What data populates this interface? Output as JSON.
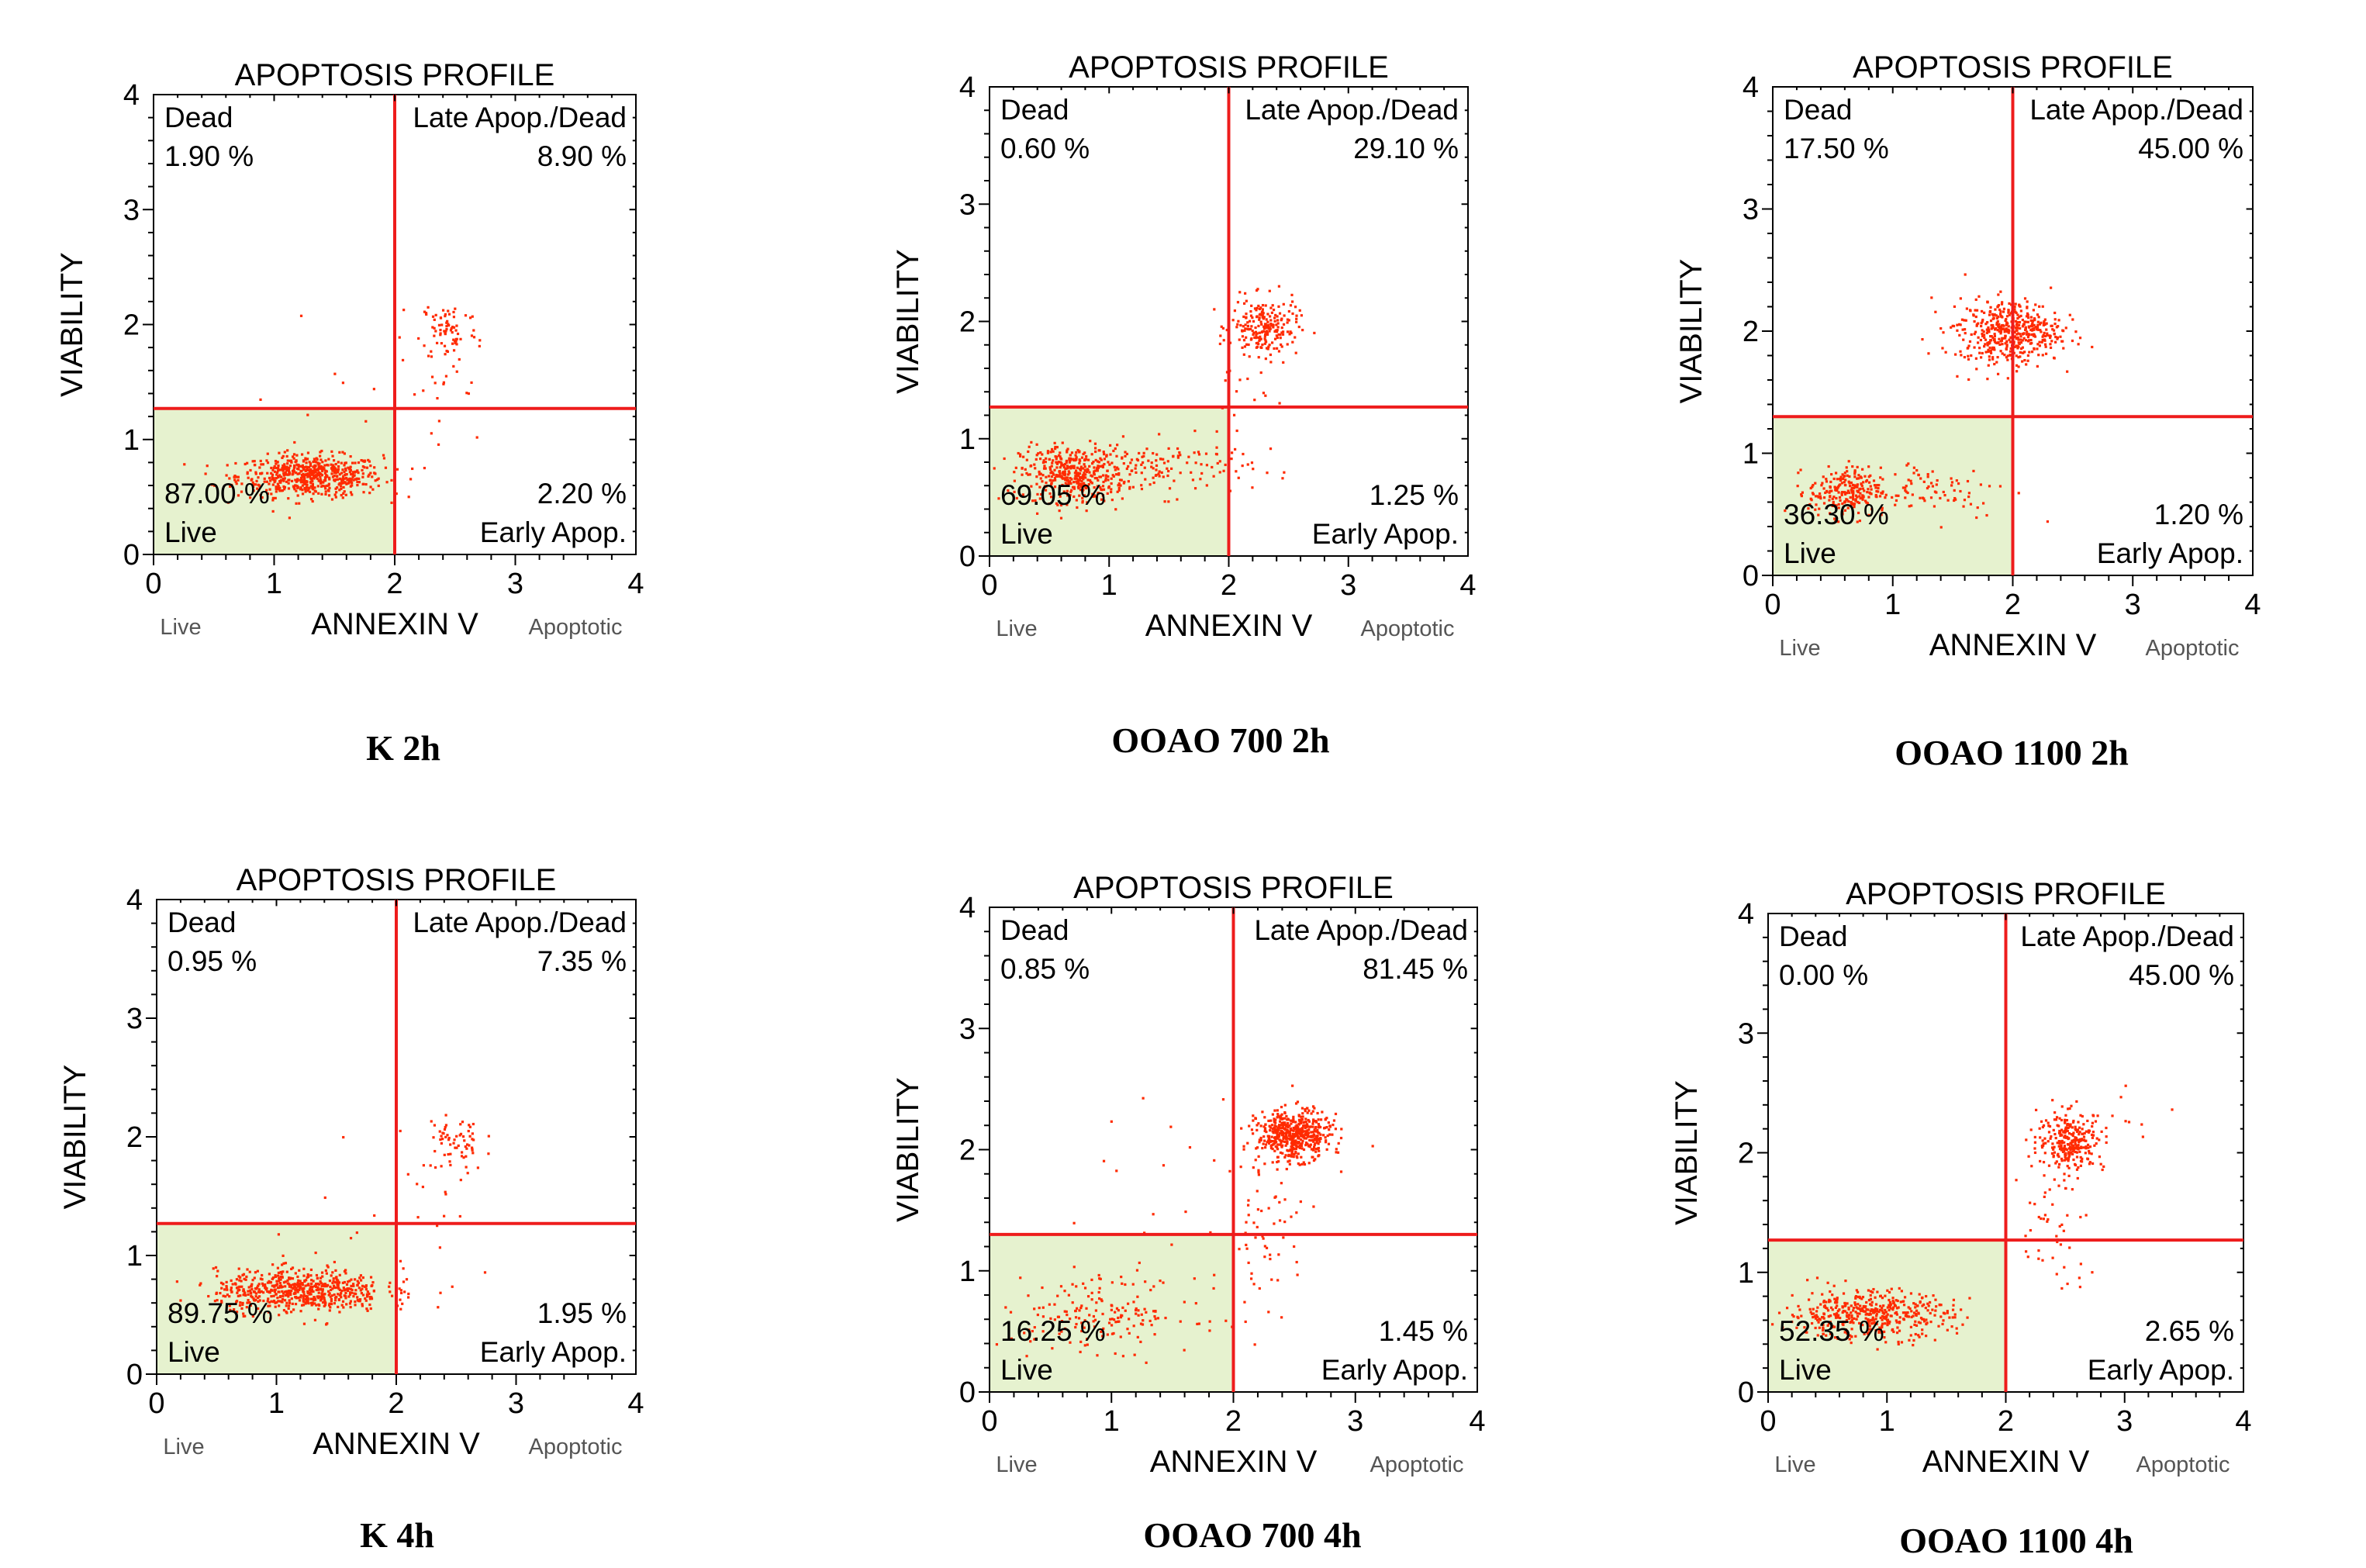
{
  "chart_data": [
    {
      "type": "scatter",
      "title": "APOPTOSIS PROFILE",
      "caption": "K 2h",
      "xlabel": "ANNEXIN V",
      "ylabel": "VIABILITY",
      "x_left_label": "Live",
      "x_right_label": "Apoptotic",
      "xlim": [
        0,
        4
      ],
      "ylim": [
        0,
        4
      ],
      "xticks": [
        "0",
        "1",
        "2",
        "3",
        "4"
      ],
      "yticks": [
        "0",
        "1",
        "2",
        "3",
        "4"
      ],
      "gate": {
        "x": 2.0,
        "y": 1.27
      },
      "quadrants": {
        "dead": {
          "label": "Dead",
          "value": "1.90 %"
        },
        "late": {
          "label": "Late Apop./Dead",
          "value": "8.90 %"
        },
        "live": {
          "label": "Live",
          "value": "87.00 %"
        },
        "early": {
          "label": "Early Apop.",
          "value": "2.20 %"
        }
      },
      "clusters": [
        {
          "cx": 1.3,
          "cy": 0.68,
          "sx": 0.3,
          "sy": 0.09,
          "n": 600
        },
        {
          "cx": 2.45,
          "cy": 1.95,
          "sx": 0.12,
          "sy": 0.14,
          "n": 70
        },
        {
          "cx": 2.3,
          "cy": 1.4,
          "sx": 0.25,
          "sy": 0.4,
          "n": 25
        },
        {
          "cx": 1.5,
          "cy": 1.6,
          "sx": 0.6,
          "sy": 0.6,
          "n": 10
        }
      ]
    },
    {
      "type": "scatter",
      "title": "APOPTOSIS PROFILE",
      "caption": "OOAO 700 2h",
      "xlabel": "ANNEXIN V",
      "ylabel": "VIABILITY",
      "x_left_label": "Live",
      "x_right_label": "Apoptotic",
      "xlim": [
        0,
        4
      ],
      "ylim": [
        0,
        4
      ],
      "xticks": [
        "0",
        "1",
        "2",
        "3",
        "4"
      ],
      "yticks": [
        "0",
        "1",
        "2",
        "3",
        "4"
      ],
      "gate": {
        "x": 2.0,
        "y": 1.27
      },
      "quadrants": {
        "dead": {
          "label": "Dead",
          "value": "0.60 %"
        },
        "late": {
          "label": "Late Apop./Dead",
          "value": "29.10 %"
        },
        "live": {
          "label": "Live",
          "value": "69.05 %"
        },
        "early": {
          "label": "Early Apop.",
          "value": "1.25 %"
        }
      },
      "clusters": [
        {
          "cx": 0.7,
          "cy": 0.7,
          "sx": 0.22,
          "sy": 0.12,
          "n": 420
        },
        {
          "cx": 1.5,
          "cy": 0.75,
          "sx": 0.35,
          "sy": 0.12,
          "n": 120
        },
        {
          "cx": 2.3,
          "cy": 1.95,
          "sx": 0.14,
          "sy": 0.12,
          "n": 220
        },
        {
          "cx": 2.1,
          "cy": 1.45,
          "sx": 0.15,
          "sy": 0.25,
          "n": 20
        }
      ]
    },
    {
      "type": "scatter",
      "title": "APOPTOSIS PROFILE",
      "caption": "OOAO 1100 2h",
      "xlabel": "ANNEXIN V",
      "ylabel": "VIABILITY",
      "x_left_label": "Live",
      "x_right_label": "Apoptotic",
      "xlim": [
        0,
        4
      ],
      "ylim": [
        0,
        4
      ],
      "xticks": [
        "0",
        "1",
        "2",
        "3",
        "4"
      ],
      "yticks": [
        "0",
        "1",
        "2",
        "3",
        "4"
      ],
      "gate": {
        "x": 2.0,
        "y": 1.3
      },
      "quadrants": {
        "dead": {
          "label": "Dead",
          "value": "17.50 %"
        },
        "late": {
          "label": "Late Apop./Dead",
          "value": "45.00 %"
        },
        "live": {
          "label": "Live",
          "value": "36.30 %"
        },
        "early": {
          "label": "Early Apop.",
          "value": "1.20 %"
        }
      },
      "clusters": [
        {
          "cx": 0.6,
          "cy": 0.68,
          "sx": 0.15,
          "sy": 0.1,
          "n": 220
        },
        {
          "cx": 1.3,
          "cy": 0.7,
          "sx": 0.35,
          "sy": 0.12,
          "n": 90
        },
        {
          "cx": 2.0,
          "cy": 2.0,
          "sx": 0.2,
          "sy": 0.13,
          "n": 420
        },
        {
          "cx": 1.7,
          "cy": 1.95,
          "sx": 0.2,
          "sy": 0.15,
          "n": 60
        }
      ]
    },
    {
      "type": "scatter",
      "title": "APOPTOSIS PROFILE",
      "caption": "K 4h",
      "xlabel": "ANNEXIN V",
      "ylabel": "VIABILITY",
      "x_left_label": "Live",
      "x_right_label": "Apoptotic",
      "xlim": [
        0,
        4
      ],
      "ylim": [
        0,
        4
      ],
      "xticks": [
        "0",
        "1",
        "2",
        "3",
        "4"
      ],
      "yticks": [
        "0",
        "1",
        "2",
        "3",
        "4"
      ],
      "gate": {
        "x": 2.0,
        "y": 1.27
      },
      "quadrants": {
        "dead": {
          "label": "Dead",
          "value": "0.95 %"
        },
        "late": {
          "label": "Late Apop./Dead",
          "value": "7.35 %"
        },
        "live": {
          "label": "Live",
          "value": "89.75 %"
        },
        "early": {
          "label": "Early Apop.",
          "value": "1.95 %"
        }
      },
      "clusters": [
        {
          "cx": 1.2,
          "cy": 0.7,
          "sx": 0.35,
          "sy": 0.09,
          "n": 620
        },
        {
          "cx": 2.5,
          "cy": 1.95,
          "sx": 0.12,
          "sy": 0.14,
          "n": 60
        },
        {
          "cx": 2.3,
          "cy": 1.3,
          "sx": 0.25,
          "sy": 0.35,
          "n": 25
        },
        {
          "cx": 1.6,
          "cy": 1.5,
          "sx": 0.5,
          "sy": 0.5,
          "n": 8
        }
      ]
    },
    {
      "type": "scatter",
      "title": "APOPTOSIS PROFILE",
      "caption": "OOAO 700 4h",
      "xlabel": "ANNEXIN V",
      "ylabel": "VIABILITY",
      "x_left_label": "Live",
      "x_right_label": "Apoptotic",
      "xlim": [
        0,
        4
      ],
      "ylim": [
        0,
        4
      ],
      "xticks": [
        "0",
        "1",
        "2",
        "3",
        "4"
      ],
      "yticks": [
        "0",
        "1",
        "2",
        "3",
        "4"
      ],
      "gate": {
        "x": 2.0,
        "y": 1.3
      },
      "quadrants": {
        "dead": {
          "label": "Dead",
          "value": "0.85 %"
        },
        "late": {
          "label": "Late Apop./Dead",
          "value": "81.45 %"
        },
        "live": {
          "label": "Live",
          "value": "16.25 %"
        },
        "early": {
          "label": "Early Apop.",
          "value": "1.45 %"
        }
      },
      "clusters": [
        {
          "cx": 0.9,
          "cy": 0.65,
          "sx": 0.4,
          "sy": 0.15,
          "n": 180
        },
        {
          "cx": 2.5,
          "cy": 2.12,
          "sx": 0.15,
          "sy": 0.1,
          "n": 520
        },
        {
          "cx": 2.3,
          "cy": 1.4,
          "sx": 0.15,
          "sy": 0.35,
          "n": 60
        },
        {
          "cx": 1.6,
          "cy": 1.6,
          "sx": 0.5,
          "sy": 0.5,
          "n": 25
        }
      ]
    },
    {
      "type": "scatter",
      "title": "APOPTOSIS PROFILE",
      "caption": "OOAO 1100 4h",
      "xlabel": "ANNEXIN V",
      "ylabel": "VIABILITY",
      "x_left_label": "Live",
      "x_right_label": "Apoptotic",
      "xlim": [
        0,
        4
      ],
      "ylim": [
        0,
        4
      ],
      "xticks": [
        "0",
        "1",
        "2",
        "3",
        "4"
      ],
      "yticks": [
        "0",
        "1",
        "2",
        "3",
        "4"
      ],
      "gate": {
        "x": 2.0,
        "y": 1.27
      },
      "quadrants": {
        "dead": {
          "label": "Dead",
          "value": "0.00 %"
        },
        "late": {
          "label": "Late Apop./Dead",
          "value": "45.00 %"
        },
        "live": {
          "label": "Live",
          "value": "52.35 %"
        },
        "early": {
          "label": "Early Apop.",
          "value": "2.65 %"
        }
      },
      "clusters": [
        {
          "cx": 0.85,
          "cy": 0.65,
          "sx": 0.35,
          "sy": 0.1,
          "n": 450
        },
        {
          "cx": 2.55,
          "cy": 2.1,
          "sx": 0.14,
          "sy": 0.12,
          "n": 280
        },
        {
          "cx": 2.4,
          "cy": 1.3,
          "sx": 0.15,
          "sy": 0.3,
          "n": 45
        },
        {
          "cx": 3.0,
          "cy": 2.3,
          "sx": 0.3,
          "sy": 0.2,
          "n": 10
        }
      ]
    }
  ],
  "colors": {
    "dots": "#ff2a00",
    "gate": "#ee1c1c",
    "live_fill": "#e6f2cf",
    "frame": "#000000"
  }
}
